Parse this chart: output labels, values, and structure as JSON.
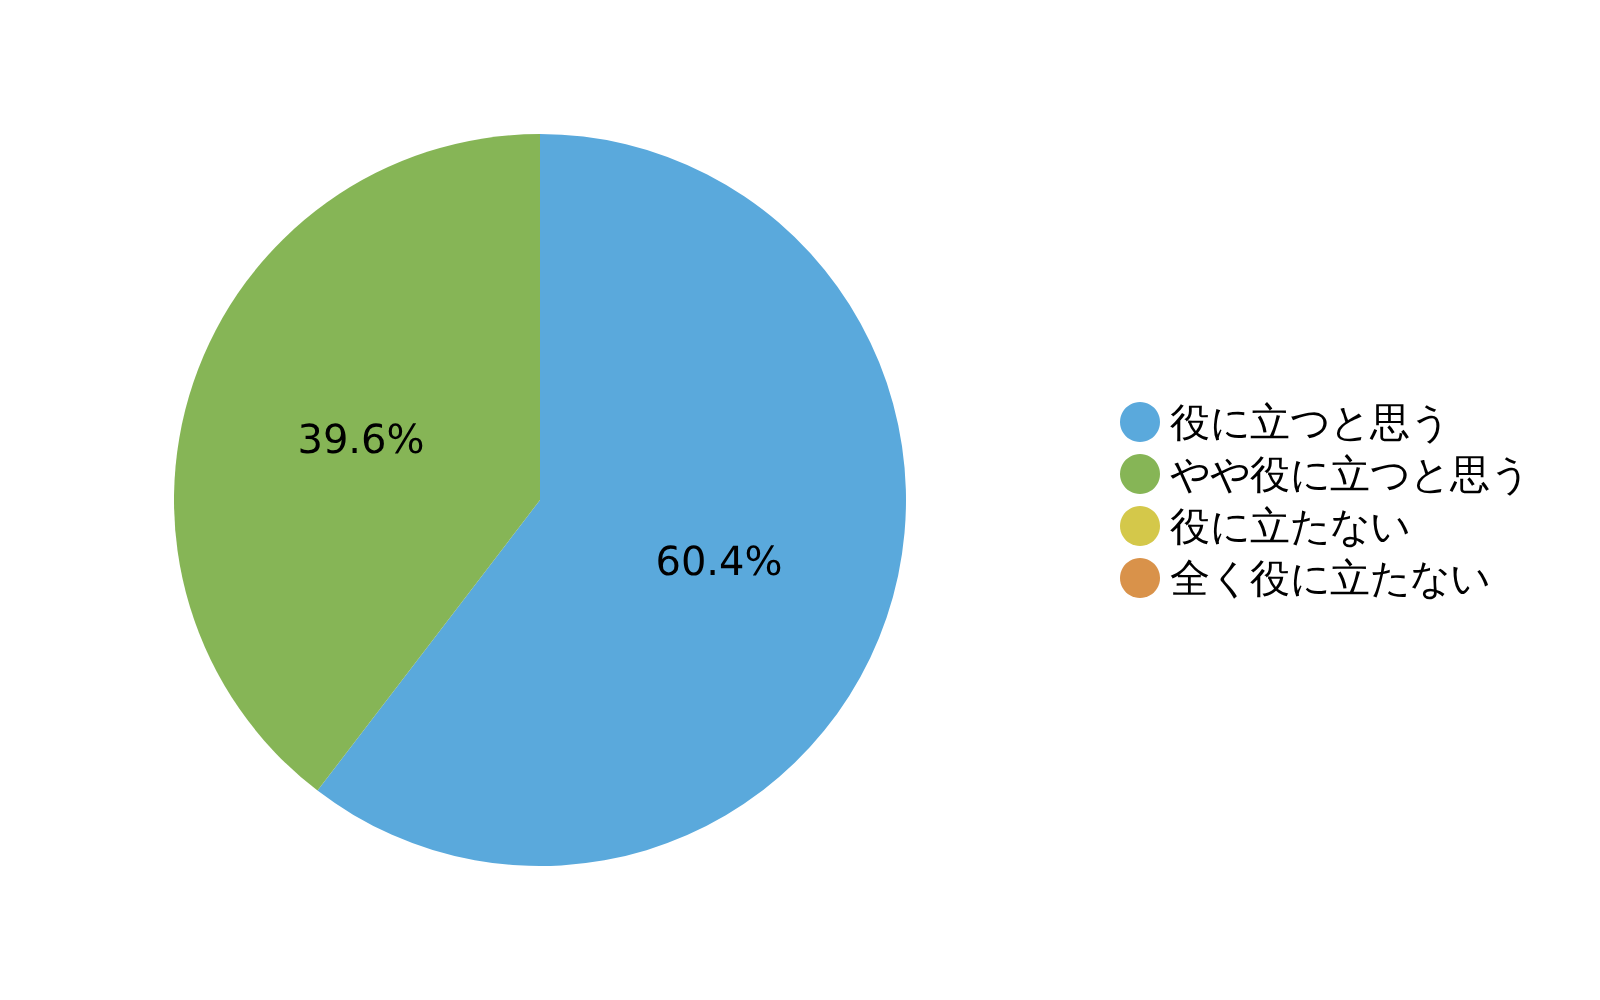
{
  "chart_data": {
    "type": "pie",
    "categories": [
      "役に立つと思う",
      "やや役に立つと思う",
      "役に立たない",
      "全く役に立たない"
    ],
    "values": [
      60.4,
      39.6,
      0,
      0
    ],
    "colors": [
      "#5aa9dc",
      "#86b556",
      "#d4c84a",
      "#d9924a"
    ],
    "value_labels": [
      "60.4%",
      "39.6%",
      null,
      null
    ],
    "legend": "right"
  }
}
